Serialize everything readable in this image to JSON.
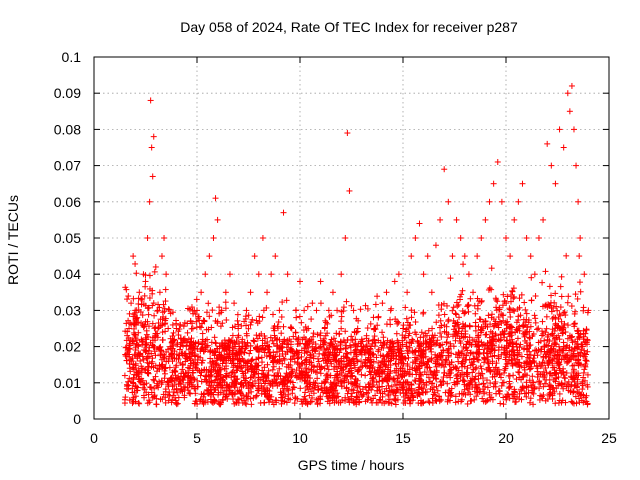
{
  "chart_data": {
    "type": "scatter",
    "title": "Day 058 of 2024, Rate Of TEC Index for receiver p287",
    "xlabel": "GPS time / hours",
    "ylabel": "ROTI / TECUs",
    "xlim": [
      0,
      25
    ],
    "ylim": [
      0,
      0.1
    ],
    "xticks": [
      0,
      5,
      10,
      15,
      20,
      25
    ],
    "yticks": [
      0,
      0.01,
      0.02,
      0.03,
      0.04,
      0.05,
      0.06,
      0.07,
      0.08,
      0.09,
      0.1
    ],
    "xtick_labels": [
      "0",
      "5",
      "10",
      "15",
      "20",
      "25"
    ],
    "ytick_labels": [
      "0",
      "0.01",
      "0.02",
      "0.03",
      "0.04",
      "0.05",
      "0.06",
      "0.07",
      "0.08",
      "0.09",
      "0.1"
    ],
    "grid": true,
    "marker": "+",
    "color": "#ff0000",
    "series": [
      {
        "name": "ROTI",
        "x": [
          1.5,
          1.6,
          1.7,
          1.8,
          1.9,
          2.0,
          2.1,
          2.2,
          2.3,
          2.4,
          2.5,
          2.6,
          2.7,
          2.75,
          2.8,
          2.85,
          2.9,
          3.0,
          3.1,
          3.2,
          3.3,
          3.4,
          3.5,
          3.6,
          3.7,
          3.8,
          3.9,
          4.0,
          4.2,
          4.4,
          4.6,
          4.8,
          5.0,
          5.2,
          5.4,
          5.6,
          5.8,
          5.9,
          6.0,
          6.2,
          6.4,
          6.6,
          6.8,
          7.0,
          7.2,
          7.4,
          7.6,
          7.8,
          8.0,
          8.2,
          8.4,
          8.6,
          8.8,
          9.0,
          9.2,
          9.4,
          9.6,
          9.8,
          10.0,
          10.2,
          10.4,
          10.6,
          10.8,
          11.0,
          11.2,
          11.4,
          11.6,
          11.8,
          12.0,
          12.2,
          12.3,
          12.4,
          12.6,
          12.8,
          13.0,
          13.2,
          13.4,
          13.6,
          13.8,
          14.0,
          14.2,
          14.4,
          14.6,
          14.8,
          15.0,
          15.2,
          15.4,
          15.6,
          15.8,
          16.0,
          16.2,
          16.4,
          16.6,
          16.8,
          17.0,
          17.2,
          17.4,
          17.6,
          17.8,
          18.0,
          18.2,
          18.4,
          18.6,
          18.8,
          19.0,
          19.2,
          19.4,
          19.6,
          19.8,
          20.0,
          20.2,
          20.4,
          20.6,
          20.8,
          21.0,
          21.2,
          21.4,
          21.6,
          21.8,
          22.0,
          22.2,
          22.4,
          22.6,
          22.8,
          23.0,
          23.1,
          23.2,
          23.3,
          23.4,
          23.5,
          23.6,
          23.8,
          24.0
        ],
        "y": [
          0.012,
          0.018,
          0.025,
          0.032,
          0.045,
          0.03,
          0.028,
          0.035,
          0.022,
          0.04,
          0.038,
          0.05,
          0.06,
          0.088,
          0.075,
          0.067,
          0.078,
          0.042,
          0.03,
          0.035,
          0.045,
          0.05,
          0.04,
          0.025,
          0.02,
          0.018,
          0.022,
          0.025,
          0.02,
          0.018,
          0.022,
          0.025,
          0.03,
          0.035,
          0.04,
          0.045,
          0.05,
          0.061,
          0.055,
          0.03,
          0.035,
          0.04,
          0.032,
          0.025,
          0.022,
          0.03,
          0.035,
          0.045,
          0.04,
          0.05,
          0.035,
          0.04,
          0.045,
          0.03,
          0.057,
          0.04,
          0.025,
          0.03,
          0.038,
          0.03,
          0.025,
          0.032,
          0.03,
          0.038,
          0.025,
          0.03,
          0.035,
          0.03,
          0.04,
          0.05,
          0.079,
          0.063,
          0.03,
          0.025,
          0.022,
          0.02,
          0.018,
          0.025,
          0.028,
          0.032,
          0.035,
          0.03,
          0.038,
          0.04,
          0.025,
          0.035,
          0.045,
          0.05,
          0.054,
          0.04,
          0.045,
          0.035,
          0.048,
          0.055,
          0.069,
          0.06,
          0.045,
          0.055,
          0.05,
          0.045,
          0.04,
          0.035,
          0.045,
          0.05,
          0.055,
          0.06,
          0.065,
          0.071,
          0.06,
          0.05,
          0.045,
          0.055,
          0.06,
          0.065,
          0.05,
          0.045,
          0.04,
          0.05,
          0.055,
          0.076,
          0.07,
          0.065,
          0.08,
          0.075,
          0.09,
          0.085,
          0.092,
          0.08,
          0.07,
          0.06,
          0.05,
          0.04,
          0.03
        ]
      }
    ]
  }
}
